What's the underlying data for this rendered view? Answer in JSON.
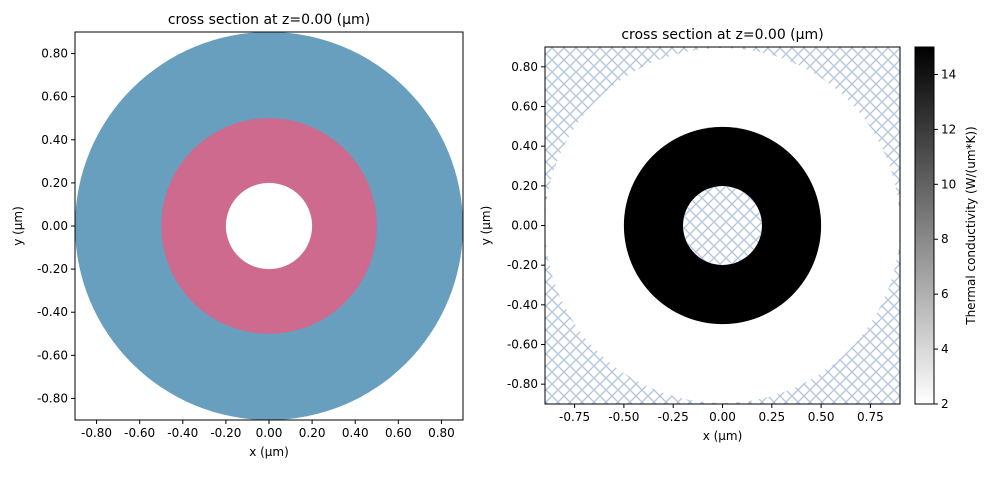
{
  "chart_data": [
    {
      "type": "cross-section",
      "title": "cross section at z=0.00 (μm)",
      "xlabel": "x (μm)",
      "ylabel": "y (μm)",
      "xlim": [
        -0.9,
        0.9
      ],
      "ylim": [
        -0.9,
        0.9
      ],
      "xticks": [
        -0.8,
        -0.6,
        -0.4,
        -0.2,
        0,
        0.2,
        0.4,
        0.6,
        0.8
      ],
      "xtick_labels": [
        "-0.80",
        "-0.60",
        "-0.40",
        "-0.20",
        "0.00",
        "0.20",
        "0.40",
        "0.60",
        "0.80"
      ],
      "yticks": [
        -0.8,
        -0.6,
        -0.4,
        -0.2,
        0,
        0.2,
        0.4,
        0.6,
        0.8
      ],
      "ytick_labels": [
        "-0.80",
        "-0.60",
        "-0.40",
        "-0.20",
        "0.00",
        "0.20",
        "0.40",
        "0.60",
        "0.80"
      ],
      "shapes": [
        {
          "name": "outer-disk",
          "radius": 0.9,
          "color": "#689fbe"
        },
        {
          "name": "ring",
          "radius": 0.5,
          "color": "#cd6a8d"
        },
        {
          "name": "hole",
          "radius": 0.2,
          "color": "#ffffff"
        }
      ]
    },
    {
      "type": "heatmap",
      "title": "cross section at z=0.00 (μm)",
      "xlabel": "x (μm)",
      "ylabel": "y (μm)",
      "xlim": [
        -0.9,
        0.9
      ],
      "ylim": [
        -0.9,
        0.9
      ],
      "xticks": [
        -0.75,
        -0.5,
        -0.25,
        0,
        0.25,
        0.5,
        0.75
      ],
      "xtick_labels": [
        "-0.75",
        "-0.50",
        "-0.25",
        "0.00",
        "0.25",
        "0.50",
        "0.75"
      ],
      "yticks": [
        -0.8,
        -0.6,
        -0.4,
        -0.2,
        0,
        0.2,
        0.4,
        0.6,
        0.8
      ],
      "ytick_labels": [
        "-0.80",
        "-0.60",
        "-0.40",
        "-0.20",
        "0.00",
        "0.20",
        "0.40",
        "0.60",
        "0.80"
      ],
      "regions": [
        {
          "name": "outer-medium",
          "radius": 0.9,
          "value": 2
        },
        {
          "name": "ring",
          "radius": 0.5,
          "value": 15
        },
        {
          "name": "hole",
          "radius": 0.2,
          "hatched": true
        }
      ],
      "hatch_color": "#b0c4de",
      "colorbar": {
        "label": "Thermal conductivity (W/(um*K))",
        "range": [
          2,
          15
        ],
        "ticks": [
          2,
          4,
          6,
          8,
          10,
          12,
          14
        ],
        "tick_labels": [
          "2",
          "4",
          "6",
          "8",
          "10",
          "12",
          "14"
        ]
      }
    }
  ]
}
